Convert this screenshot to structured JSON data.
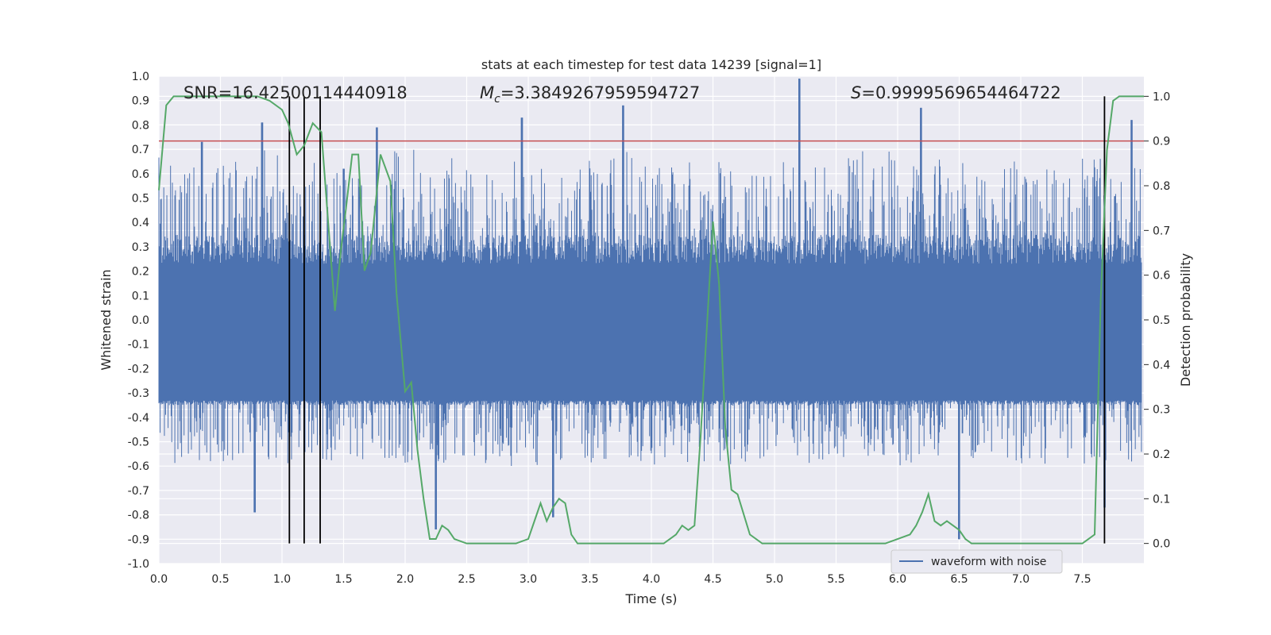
{
  "chart_data": {
    "type": "line",
    "title": "stats at each timestep for test data 14239 [signal=1]",
    "xlabel": "Time (s)",
    "ylabel": "Whitened strain",
    "y2label": "Detection probability",
    "xlim": [
      0.0,
      8.0
    ],
    "ylim": [
      -1.0,
      1.0
    ],
    "y2lim": [
      -0.045,
      1.045
    ],
    "xticks": [
      0.0,
      0.5,
      1.0,
      1.5,
      2.0,
      2.5,
      3.0,
      3.5,
      4.0,
      4.5,
      5.0,
      5.5,
      6.0,
      6.5,
      7.0,
      7.5
    ],
    "yticks": [
      -1.0,
      -0.9,
      -0.8,
      -0.7,
      -0.6,
      -0.5,
      -0.4,
      -0.3,
      -0.2,
      -0.1,
      0.0,
      0.1,
      0.2,
      0.3,
      0.4,
      0.5,
      0.6,
      0.7,
      0.8,
      0.9,
      1.0
    ],
    "y2ticks": [
      0.0,
      0.1,
      0.2,
      0.3,
      0.4,
      0.5,
      0.6,
      0.7,
      0.8,
      0.9,
      1.0
    ],
    "grid": true,
    "legend_placement": "lower-right",
    "annotations": {
      "snr": "SNR=16.42500114440918",
      "mc_symbol": "M",
      "mc_sub": "c",
      "mc_value": "=3.3849267959594727",
      "s_symbol": "S",
      "s_value": "=0.9999569654464722"
    },
    "threshold_line": {
      "y2": 0.9,
      "color": "#c44e52"
    },
    "vertical_markers": [
      1.06,
      1.18,
      1.31,
      7.68
    ],
    "strain_series": {
      "name": "waveform with noise",
      "color": "#4c72b0",
      "envelope": {
        "upper": 0.35,
        "lower": -0.35,
        "dense_upper": 0.23,
        "dense_lower": -0.33
      },
      "peaks": [
        {
          "x": 0.35,
          "y": 0.73
        },
        {
          "x": 0.84,
          "y": 0.81
        },
        {
          "x": 1.5,
          "y": 0.62
        },
        {
          "x": 1.77,
          "y": 0.79
        },
        {
          "x": 2.95,
          "y": 0.83
        },
        {
          "x": 3.77,
          "y": 0.88
        },
        {
          "x": 5.2,
          "y": 0.99
        },
        {
          "x": 6.19,
          "y": 0.87
        },
        {
          "x": 7.9,
          "y": 0.82
        },
        {
          "x": 0.78,
          "y": -0.79
        },
        {
          "x": 2.25,
          "y": -0.86
        },
        {
          "x": 3.2,
          "y": -0.81
        },
        {
          "x": 6.5,
          "y": -0.9
        },
        {
          "x": 7.68,
          "y": -0.77
        }
      ]
    },
    "probability_series": {
      "name": "Detection probability",
      "color": "#55a868",
      "x": [
        0.0,
        0.06,
        0.12,
        0.18,
        0.24,
        0.3,
        0.4,
        0.5,
        0.6,
        0.7,
        0.8,
        0.9,
        1.0,
        1.05,
        1.12,
        1.18,
        1.25,
        1.32,
        1.38,
        1.43,
        1.48,
        1.52,
        1.57,
        1.62,
        1.67,
        1.72,
        1.8,
        1.88,
        1.93,
        2.0,
        2.05,
        2.1,
        2.15,
        2.2,
        2.25,
        2.3,
        2.35,
        2.4,
        2.5,
        2.6,
        2.7,
        2.8,
        2.9,
        3.0,
        3.05,
        3.1,
        3.15,
        3.2,
        3.25,
        3.3,
        3.35,
        3.4,
        3.5,
        3.6,
        3.7,
        3.8,
        3.9,
        4.0,
        4.1,
        4.15,
        4.2,
        4.25,
        4.3,
        4.35,
        4.4,
        4.45,
        4.5,
        4.55,
        4.6,
        4.65,
        4.7,
        4.8,
        4.9,
        5.0,
        5.5,
        5.8,
        5.9,
        6.0,
        6.1,
        6.15,
        6.2,
        6.25,
        6.3,
        6.35,
        6.4,
        6.45,
        6.5,
        6.55,
        6.6,
        6.7,
        6.8,
        6.9,
        7.0,
        7.2,
        7.4,
        7.5,
        7.55,
        7.6,
        7.65,
        7.7,
        7.75,
        7.8,
        7.85,
        7.9,
        7.95,
        8.0
      ],
      "y": [
        0.79,
        0.98,
        1.0,
        1.0,
        1.0,
        1.0,
        1.0,
        1.0,
        1.0,
        1.0,
        1.0,
        0.99,
        0.97,
        0.94,
        0.87,
        0.89,
        0.94,
        0.92,
        0.7,
        0.52,
        0.66,
        0.75,
        0.87,
        0.87,
        0.61,
        0.65,
        0.87,
        0.81,
        0.56,
        0.34,
        0.36,
        0.21,
        0.1,
        0.01,
        0.01,
        0.04,
        0.03,
        0.01,
        0.0,
        0.0,
        0.0,
        0.0,
        0.0,
        0.01,
        0.05,
        0.09,
        0.05,
        0.08,
        0.1,
        0.09,
        0.02,
        0.0,
        0.0,
        0.0,
        0.0,
        0.0,
        0.0,
        0.0,
        0.0,
        0.01,
        0.02,
        0.04,
        0.03,
        0.04,
        0.24,
        0.48,
        0.72,
        0.58,
        0.26,
        0.12,
        0.11,
        0.02,
        0.0,
        0.0,
        0.0,
        0.0,
        0.0,
        0.01,
        0.02,
        0.04,
        0.07,
        0.11,
        0.05,
        0.04,
        0.05,
        0.04,
        0.03,
        0.01,
        0.0,
        0.0,
        0.0,
        0.0,
        0.0,
        0.0,
        0.0,
        0.0,
        0.01,
        0.02,
        0.55,
        0.88,
        0.99,
        1.0,
        1.0,
        1.0,
        1.0,
        1.0
      ]
    }
  }
}
